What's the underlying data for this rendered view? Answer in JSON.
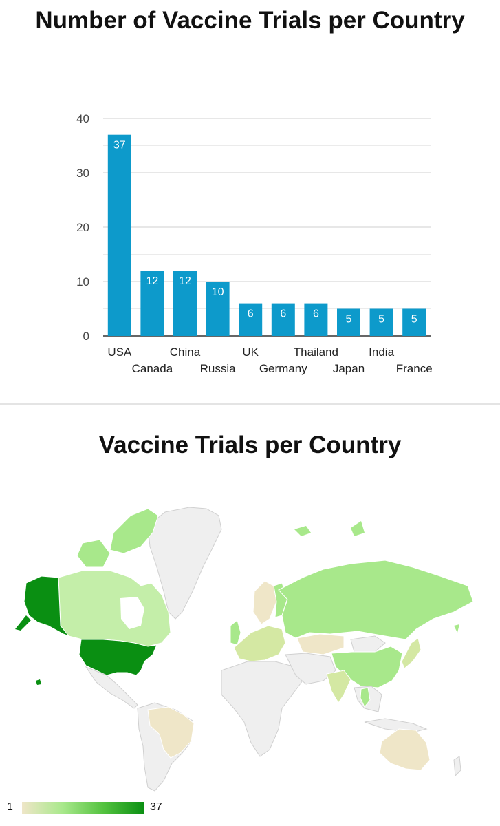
{
  "bar_chart": {
    "title": "Number of Vaccine Trials per Country"
  },
  "map_chart": {
    "title": "Vaccine Trials per Country",
    "legend_min": "1",
    "legend_max": "37"
  },
  "chart_data": [
    {
      "type": "bar",
      "title": "Number of Vaccine Trials per Country",
      "categories": [
        "USA",
        "Canada",
        "China",
        "Russia",
        "UK",
        "Germany",
        "Thailand",
        "Japan",
        "India",
        "France"
      ],
      "values": [
        37,
        12,
        12,
        10,
        6,
        6,
        6,
        5,
        5,
        5
      ],
      "ylim": [
        0,
        40
      ],
      "yticks": [
        0,
        10,
        20,
        30,
        40
      ],
      "grid": true,
      "bar_color": "#0d9acb"
    },
    {
      "type": "heatmap",
      "title": "Vaccine Trials per Country",
      "scale_min": 1,
      "scale_max": 37,
      "scale_colors": [
        "#efe6c8",
        "#0a8f12"
      ]
    }
  ]
}
